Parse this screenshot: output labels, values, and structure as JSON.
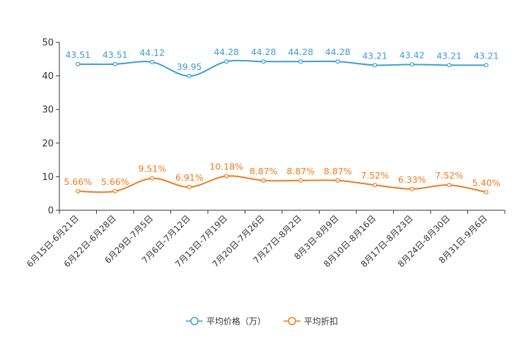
{
  "chart_data": {
    "type": "line",
    "title": "",
    "xlabel": "",
    "ylabel": "",
    "ylim": [
      0,
      50
    ],
    "yticks": [
      0,
      10,
      20,
      30,
      40,
      50
    ],
    "grid": false,
    "legend_position": "bottom-center",
    "categories": [
      "6月15日-6月21日",
      "6月22日-6月28日",
      "6月29日-7月5日",
      "7月6日-7月12日",
      "7月13日-7月19日",
      "7月20日-7月26日",
      "7月27日-8月2日",
      "8月3日-8月9日",
      "8月10日-8月16日",
      "8月17日-8月23日",
      "8月24日-8月30日",
      "8月31日-9月6日"
    ],
    "series": [
      {
        "name": "平均价格（万）",
        "color": "#3d9dd2",
        "values": [
          43.51,
          43.51,
          44.12,
          39.95,
          44.28,
          44.28,
          44.28,
          44.28,
          43.21,
          43.42,
          43.21,
          43.21
        ],
        "labels": [
          "43.51",
          "43.51",
          "44.12",
          "39.95",
          "44.28",
          "44.28",
          "44.28",
          "44.28",
          "43.21",
          "43.42",
          "43.21",
          "43.21"
        ]
      },
      {
        "name": "平均折扣",
        "color": "#f07b1b",
        "values": [
          5.66,
          5.66,
          9.51,
          6.91,
          10.18,
          8.87,
          8.87,
          8.87,
          7.52,
          6.33,
          7.52,
          5.4
        ],
        "labels": [
          "5.66%",
          "5.66%",
          "9.51%",
          "6.91%",
          "10.18%",
          "8.87%",
          "8.87%",
          "8.87%",
          "7.52%",
          "6.33%",
          "7.52%",
          "5.40%"
        ]
      }
    ]
  }
}
